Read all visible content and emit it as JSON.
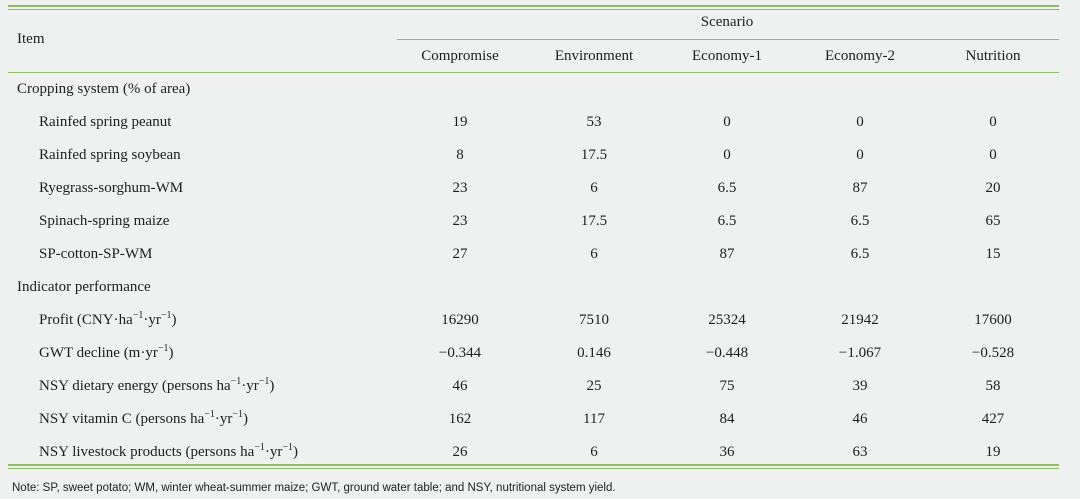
{
  "table": {
    "item_header": "Item",
    "scenario_header": "Scenario",
    "columns": [
      "Compromise",
      "Environment",
      "Economy-1",
      "Economy-2",
      "Nutrition"
    ],
    "sections": [
      {
        "title": "Cropping system (% of area)",
        "rows": [
          {
            "label": "Rainfed spring peanut",
            "values": [
              "19",
              "53",
              "0",
              "0",
              "0"
            ]
          },
          {
            "label": "Rainfed spring soybean",
            "values": [
              "8",
              "17.5",
              "0",
              "0",
              "0"
            ]
          },
          {
            "label": "Ryegrass-sorghum-WM",
            "values": [
              "23",
              "6",
              "6.5",
              "87",
              "20"
            ]
          },
          {
            "label": "Spinach-spring maize",
            "values": [
              "23",
              "17.5",
              "6.5",
              "6.5",
              "65"
            ]
          },
          {
            "label": "SP-cotton-SP-WM",
            "values": [
              "27",
              "6",
              "87",
              "6.5",
              "15"
            ]
          }
        ]
      },
      {
        "title": "Indicator performance",
        "rows": [
          {
            "label_parts": [
              "Profit (CNY·ha",
              "−1",
              "·yr",
              "−1",
              ")"
            ],
            "values": [
              "16290",
              "7510",
              "25324",
              "21942",
              "17600"
            ]
          },
          {
            "label_parts": [
              "GWT decline (m·yr",
              "−1",
              ")"
            ],
            "values": [
              "−0.344",
              "0.146",
              "−0.448",
              "−1.067",
              "−0.528"
            ]
          },
          {
            "label_parts": [
              "NSY dietary energy (persons ha",
              "−1",
              "·yr",
              "−1",
              ")"
            ],
            "values": [
              "46",
              "25",
              "75",
              "39",
              "58"
            ]
          },
          {
            "label_parts": [
              "NSY vitamin C (persons ha",
              "−1",
              "·yr",
              "−1",
              ")"
            ],
            "values": [
              "162",
              "117",
              "84",
              "46",
              "427"
            ]
          },
          {
            "label_parts": [
              "NSY livestock products (persons ha",
              "−1",
              "·yr",
              "−1",
              ")"
            ],
            "values": [
              "26",
              "6",
              "36",
              "63",
              "19"
            ]
          }
        ]
      }
    ]
  },
  "note": "Note: SP, sweet potato; WM, winter wheat-summer maize; GWT, ground water table; and NSY, nutritional system yield."
}
